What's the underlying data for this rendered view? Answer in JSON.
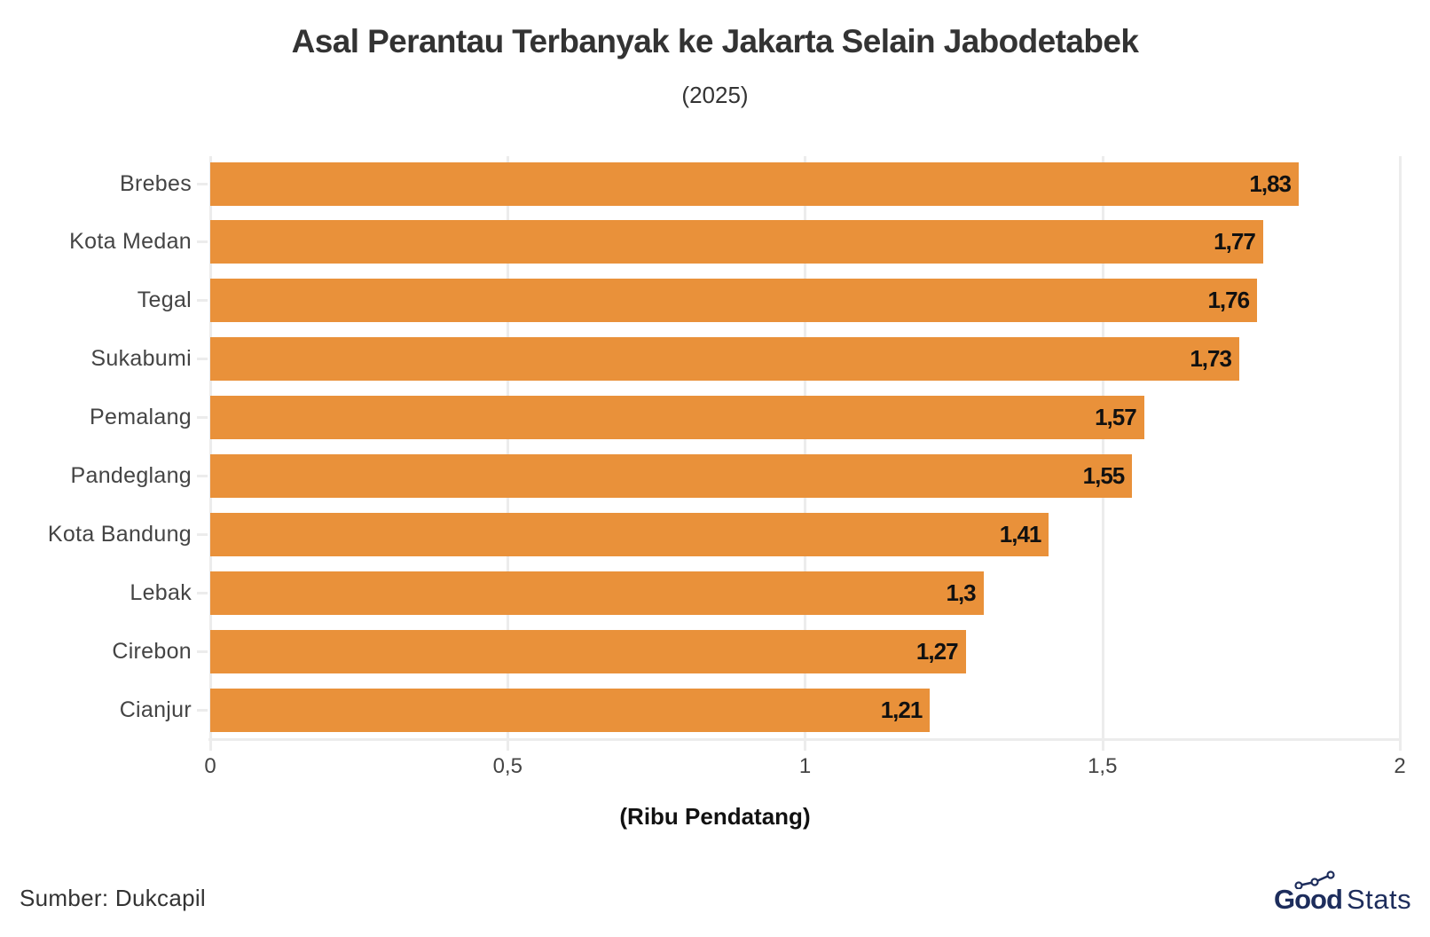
{
  "header": {
    "title": "Asal Perantau Terbanyak ke Jakarta Selain Jabodetabek",
    "subtitle": "(2025)"
  },
  "colors": {
    "bar": "#E9913A",
    "grid": "#ECECEC",
    "text": "#333333",
    "logo": "#1D2D5C"
  },
  "axis": {
    "x_title": "(Ribu Pendatang)",
    "x_ticks": [
      "0",
      "0,5",
      "1",
      "1,5",
      "2"
    ]
  },
  "bars": [
    {
      "label": "Brebes",
      "value_label": "1,83"
    },
    {
      "label": "Kota Medan",
      "value_label": "1,77"
    },
    {
      "label": "Tegal",
      "value_label": "1,76"
    },
    {
      "label": "Sukabumi",
      "value_label": "1,73"
    },
    {
      "label": "Pemalang",
      "value_label": "1,57"
    },
    {
      "label": "Pandeglang",
      "value_label": "1,55"
    },
    {
      "label": "Kota Bandung",
      "value_label": "1,41"
    },
    {
      "label": "Lebak",
      "value_label": "1,3"
    },
    {
      "label": "Cirebon",
      "value_label": "1,27"
    },
    {
      "label": "Cianjur",
      "value_label": "1,21"
    }
  ],
  "footer": {
    "source": "Sumber: Dukcapil",
    "logo_bold": "Good",
    "logo_light": "Stats"
  },
  "chart_data": {
    "type": "bar",
    "orientation": "horizontal",
    "title": "Asal Perantau Terbanyak ke Jakarta Selain Jabodetabek",
    "subtitle": "(2025)",
    "categories": [
      "Brebes",
      "Kota Medan",
      "Tegal",
      "Sukabumi",
      "Pemalang",
      "Pandeglang",
      "Kota Bandung",
      "Lebak",
      "Cirebon",
      "Cianjur"
    ],
    "values": [
      1.83,
      1.77,
      1.76,
      1.73,
      1.57,
      1.55,
      1.41,
      1.3,
      1.27,
      1.21
    ],
    "xlabel": "(Ribu Pendatang)",
    "ylabel": "",
    "xlim": [
      0,
      2
    ],
    "x_ticks": [
      0,
      0.5,
      1,
      1.5,
      2
    ],
    "grid": true,
    "legend": null,
    "data_labels": true,
    "source": "Sumber: Dukcapil"
  }
}
